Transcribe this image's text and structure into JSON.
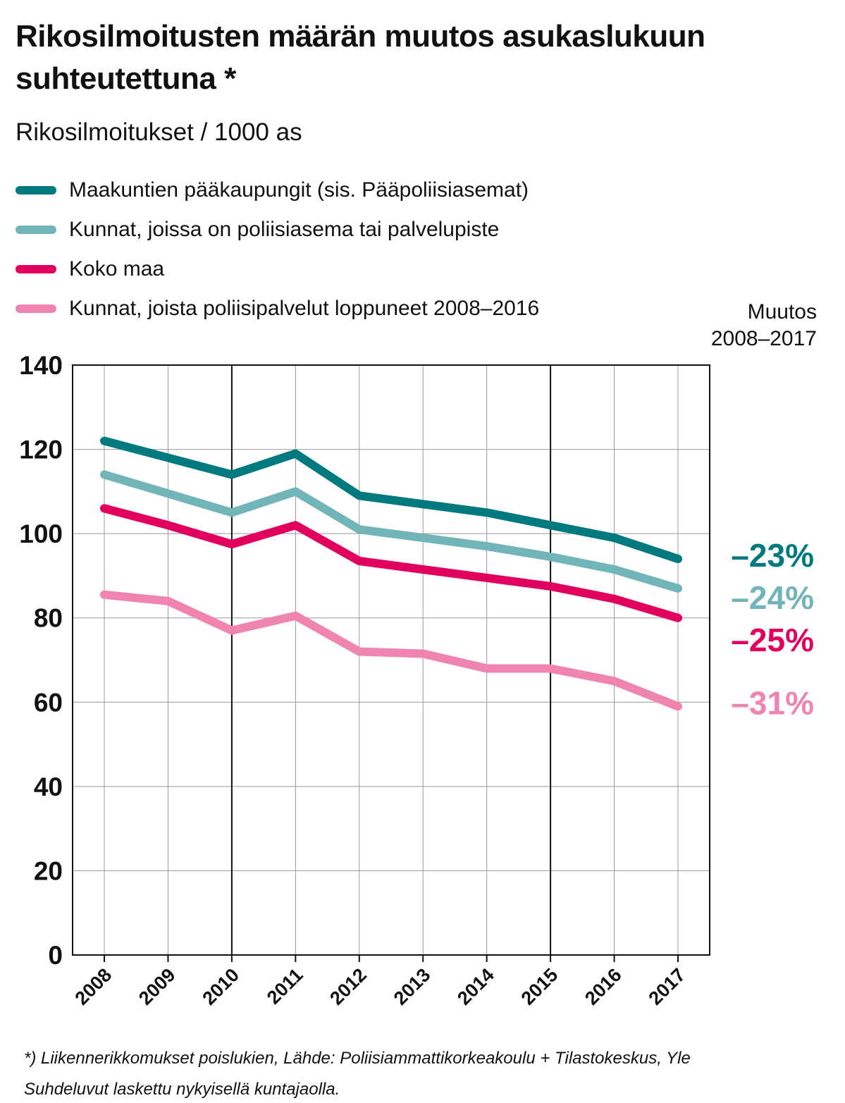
{
  "title": "Rikosilmoitusten määrän muutos asukaslukuun suhteutettuna *",
  "subtitle": "Rikosilmoitukset / 1000 as",
  "legend": [
    {
      "label": "Maakuntien pääkaupungit (sis. Pääpoliisiasemat)",
      "color": "#007a7e"
    },
    {
      "label": "Kunnat, joissa on poliisiasema tai palvelupiste",
      "color": "#72b5b8"
    },
    {
      "label": "Koko maa",
      "color": "#e2005f"
    },
    {
      "label": "Kunnat, joista poliisipalvelut loppuneet 2008–2016",
      "color": "#f084b1"
    }
  ],
  "change_header": {
    "line1": "Muutos",
    "line2": "2008–2017"
  },
  "footnotes": {
    "line1": "*) Liikennerikkomukset poislukien, Lähde: Poliisiammattikorkeakoulu + Tilastokeskus,  Yle",
    "line2": "Suhdeluvut laskettu nykyisellä kuntajaolla."
  },
  "chart_data": {
    "type": "line",
    "title": "Rikosilmoitusten määrän muutos asukaslukuun suhteutettuna *",
    "ylabel": "Rikosilmoitukset / 1000 as",
    "x": [
      "2008",
      "2009",
      "2010",
      "2011",
      "2012",
      "2013",
      "2014",
      "2015",
      "2016",
      "2017"
    ],
    "ylim": [
      0,
      140
    ],
    "yticks": [
      0,
      20,
      40,
      60,
      80,
      100,
      120,
      140
    ],
    "grid": true,
    "emphasized_gridlines_x": [
      "2010",
      "2015"
    ],
    "legend_position": "top-left",
    "series": [
      {
        "name": "Maakuntien pääkaupungit (sis. Pääpoliisiasemat)",
        "color": "#007a7e",
        "values": [
          122,
          118,
          114,
          119,
          109,
          107,
          105,
          102,
          99,
          94
        ],
        "change": "–23%"
      },
      {
        "name": "Kunnat, joissa on poliisiasema tai palvelupiste",
        "color": "#72b5b8",
        "values": [
          114,
          109.5,
          105,
          110,
          101,
          99,
          97,
          94.5,
          91.5,
          87
        ],
        "change": "–24%"
      },
      {
        "name": "Koko maa",
        "color": "#e2005f",
        "values": [
          106,
          102,
          97.5,
          102,
          93.5,
          91.5,
          89.5,
          87.5,
          84.5,
          80
        ],
        "change": "–25%"
      },
      {
        "name": "Kunnat, joista poliisipalvelut loppuneet 2008–2016",
        "color": "#f084b1",
        "values": [
          85.5,
          84,
          77,
          80.5,
          72,
          71.5,
          68,
          68,
          65,
          59
        ],
        "change": "–31%"
      }
    ]
  }
}
